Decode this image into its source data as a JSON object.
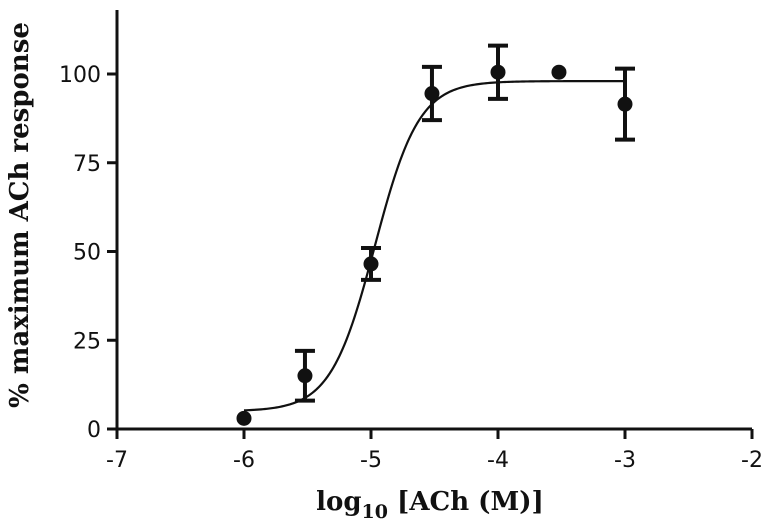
{
  "chart_data": {
    "type": "scatter",
    "xlabel_main": "log",
    "xlabel_sub": "10",
    "xlabel_rest": " [ACh (M)]",
    "ylabel": "% maximum ACh response",
    "xlim": [
      -7,
      -2
    ],
    "ylim": [
      0,
      110
    ],
    "xticks": [
      -7,
      -6,
      -5,
      -4,
      -3,
      -2
    ],
    "xtick_labels": [
      "-7",
      "-6",
      "-5",
      "-4",
      "-3",
      "-2"
    ],
    "yticks": [
      0,
      25,
      50,
      75,
      100
    ],
    "ytick_labels": [
      "0",
      "25",
      "50",
      "75",
      "100"
    ],
    "grid": false,
    "series": [
      {
        "points": [
          {
            "x": -6.0,
            "y": 3,
            "err": 0
          },
          {
            "x": -5.52,
            "y": 15,
            "err": 7
          },
          {
            "x": -5.0,
            "y": 46.5,
            "err": 4.5
          },
          {
            "x": -4.52,
            "y": 94.5,
            "err": 7.5
          },
          {
            "x": -4.0,
            "y": 100.5,
            "err": 7.5
          },
          {
            "x": -3.52,
            "y": 100.5,
            "err": 0
          },
          {
            "x": -3.0,
            "y": 91.5,
            "err": 10
          }
        ],
        "fit": {
          "type": "sigmoid",
          "bottom": 5,
          "top": 98,
          "logEC50": -4.97,
          "hill": 2.5,
          "x_range": [
            -6,
            -3
          ]
        }
      }
    ]
  }
}
